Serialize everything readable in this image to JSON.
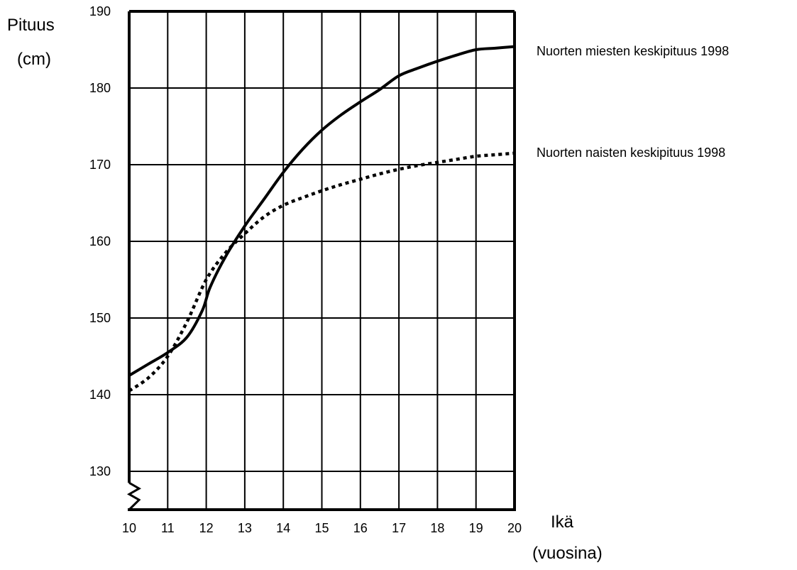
{
  "chart_data": {
    "type": "line",
    "xlabel_line1": "Ikä",
    "xlabel_line2": "(vuosina)",
    "ylabel_line1": "Pituus",
    "ylabel_line2": "(cm)",
    "xlim": [
      10,
      20
    ],
    "ylim": [
      125,
      190
    ],
    "axis_break": "y-axis broken between 125 and 130",
    "grid": true,
    "x_ticks": [
      10,
      11,
      12,
      13,
      14,
      15,
      16,
      17,
      18,
      19,
      20
    ],
    "y_ticks": [
      130,
      140,
      150,
      160,
      170,
      180,
      190
    ],
    "legend_placement": "right of plot, next to line ends",
    "series": [
      {
        "name": "Nuorten miesten keskipituus 1998",
        "style": "solid",
        "color": "#000000",
        "x": [
          10,
          10.5,
          11,
          11.5,
          11.9,
          12.1,
          12.5,
          13,
          13.5,
          14,
          14.5,
          15,
          15.5,
          16,
          16.5,
          17,
          17.5,
          18,
          18.5,
          19,
          19.5,
          20
        ],
        "y": [
          142.5,
          144,
          145.5,
          147.5,
          151,
          154,
          158,
          162,
          165.5,
          169,
          172,
          174.5,
          176.5,
          178.2,
          179.8,
          181.6,
          182.6,
          183.5,
          184.3,
          185,
          185.2,
          185.4
        ]
      },
      {
        "name": "Nuorten naisten keskipituus 1998",
        "style": "dotted",
        "color": "#000000",
        "x": [
          10,
          10.5,
          11,
          11.5,
          12,
          12.5,
          13,
          13.5,
          14,
          14.5,
          15,
          15.5,
          16,
          16.5,
          17,
          17.5,
          18,
          18.5,
          19,
          19.5,
          20
        ],
        "y": [
          140.5,
          142.2,
          145,
          149.5,
          155,
          158.5,
          161,
          163.2,
          164.7,
          165.7,
          166.6,
          167.4,
          168.1,
          168.8,
          169.4,
          169.9,
          170.3,
          170.7,
          171.1,
          171.3,
          171.5
        ]
      }
    ]
  }
}
